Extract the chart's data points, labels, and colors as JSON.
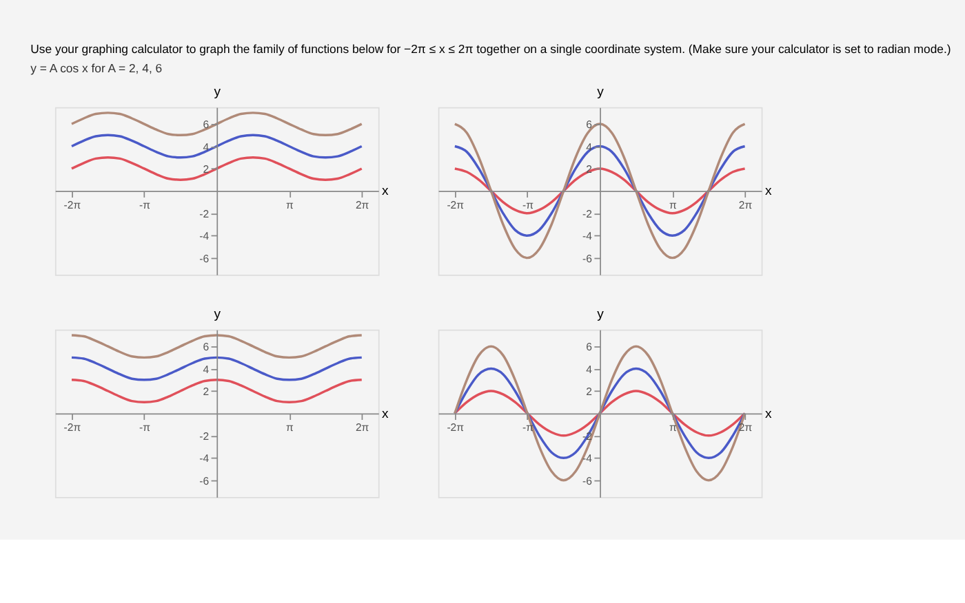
{
  "chart_data": [
    {
      "type": "line",
      "title": "Use your graphing calculator to graph the family of functions below for −2π ≤ x ≤ 2π together on a single coordinate system. (Make sure your calculator is set to radian mode.)",
      "subtitle": "y = A cos x   for   A = 2, 4, 6",
      "xlabel": "x",
      "ylabel": "y",
      "x": [
        -6.28,
        -5.76,
        -5.24,
        -4.71,
        -4.19,
        -3.67,
        -3.14,
        -2.62,
        -2.09,
        -1.57,
        -1.05,
        -0.52,
        0,
        0.52,
        1.05,
        1.57,
        2.09,
        2.62,
        3.14,
        3.67,
        4.19,
        4.71,
        5.24,
        5.76,
        6.28
      ],
      "xlim": [
        -7,
        7
      ],
      "ylim": [
        -7.5,
        7.5
      ],
      "xticks": [
        {
          "value": -6.28,
          "label": "-2π"
        },
        {
          "value": -3.14,
          "label": "-π"
        },
        {
          "value": 3.14,
          "label": "π"
        },
        {
          "value": 6.28,
          "label": "2π"
        }
      ],
      "yticks": [
        -6,
        -4,
        -2,
        2,
        4,
        6
      ],
      "series": [
        {
          "color": "#e0505a",
          "values": [
            2,
            2.5,
            2.9,
            3,
            2.9,
            2.5,
            2,
            1.5,
            1.1,
            1,
            1.1,
            1.5,
            2,
            2.5,
            2.9,
            3,
            2.9,
            2.5,
            2,
            1.5,
            1.1,
            1,
            1.1,
            1.5,
            2
          ]
        },
        {
          "color": "#4a5ac8",
          "values": [
            4,
            4.5,
            4.9,
            5,
            4.9,
            4.5,
            4,
            3.5,
            3.1,
            3,
            3.1,
            3.5,
            4,
            4.5,
            4.9,
            5,
            4.9,
            4.5,
            4,
            3.5,
            3.1,
            3,
            3.1,
            3.5,
            4
          ]
        },
        {
          "color": "#b08a78",
          "values": [
            6,
            6.5,
            6.9,
            7,
            6.9,
            6.5,
            6,
            5.5,
            5.1,
            5,
            5.1,
            5.5,
            6,
            6.5,
            6.9,
            7,
            6.9,
            6.5,
            6,
            5.5,
            5.1,
            5,
            5.1,
            5.5,
            6
          ]
        }
      ]
    },
    {
      "type": "line",
      "xlabel": "x",
      "ylabel": "y",
      "x": [
        -6.28,
        -5.76,
        -5.24,
        -4.71,
        -4.19,
        -3.67,
        -3.14,
        -2.62,
        -2.09,
        -1.57,
        -1.05,
        -0.52,
        0,
        0.52,
        1.05,
        1.57,
        2.09,
        2.62,
        3.14,
        3.67,
        4.19,
        4.71,
        5.24,
        5.76,
        6.28
      ],
      "xlim": [
        -7,
        7
      ],
      "ylim": [
        -7.5,
        7.5
      ],
      "xticks": [
        {
          "value": -6.28,
          "label": "-2π"
        },
        {
          "value": -3.14,
          "label": "-π"
        },
        {
          "value": 3.14,
          "label": "π"
        },
        {
          "value": 6.28,
          "label": "2π"
        }
      ],
      "yticks": [
        -6,
        -4,
        -2,
        2,
        4,
        6
      ],
      "series": [
        {
          "color": "#e0505a",
          "values": [
            2,
            1.7,
            1,
            0,
            -1,
            -1.7,
            -2,
            -1.7,
            -1,
            0,
            1,
            1.7,
            2,
            1.7,
            1,
            0,
            -1,
            -1.7,
            -2,
            -1.7,
            -1,
            0,
            1,
            1.7,
            2
          ]
        },
        {
          "color": "#4a5ac8",
          "values": [
            4,
            3.5,
            2,
            0,
            -2,
            -3.5,
            -4,
            -3.5,
            -2,
            0,
            2,
            3.5,
            4,
            3.5,
            2,
            0,
            -2,
            -3.5,
            -4,
            -3.5,
            -2,
            0,
            2,
            3.5,
            4
          ]
        },
        {
          "color": "#b08a78",
          "values": [
            6,
            5.2,
            3,
            0,
            -3,
            -5.2,
            -6,
            -5.2,
            -3,
            0,
            3,
            5.2,
            6,
            5.2,
            3,
            0,
            -3,
            -5.2,
            -6,
            -5.2,
            -3,
            0,
            3,
            5.2,
            6
          ]
        }
      ]
    },
    {
      "type": "line",
      "xlabel": "x",
      "ylabel": "y",
      "x": [
        -6.28,
        -5.76,
        -5.24,
        -4.71,
        -4.19,
        -3.67,
        -3.14,
        -2.62,
        -2.09,
        -1.57,
        -1.05,
        -0.52,
        0,
        0.52,
        1.05,
        1.57,
        2.09,
        2.62,
        3.14,
        3.67,
        4.19,
        4.71,
        5.24,
        5.76,
        6.28
      ],
      "xlim": [
        -7,
        7
      ],
      "ylim": [
        -7.5,
        7.5
      ],
      "xticks": [
        {
          "value": -6.28,
          "label": "-2π"
        },
        {
          "value": -3.14,
          "label": "-π"
        },
        {
          "value": 3.14,
          "label": "π"
        },
        {
          "value": 6.28,
          "label": "2π"
        }
      ],
      "yticks": [
        -6,
        -4,
        -2,
        2,
        4,
        6
      ],
      "series": [
        {
          "color": "#e0505a",
          "values": [
            3,
            2.9,
            2.5,
            2,
            1.5,
            1.1,
            1,
            1.1,
            1.5,
            2,
            2.5,
            2.9,
            3,
            2.9,
            2.5,
            2,
            1.5,
            1.1,
            1,
            1.1,
            1.5,
            2,
            2.5,
            2.9,
            3
          ]
        },
        {
          "color": "#4a5ac8",
          "values": [
            5,
            4.9,
            4.5,
            4,
            3.5,
            3.1,
            3,
            3.1,
            3.5,
            4,
            4.5,
            4.9,
            5,
            4.9,
            4.5,
            4,
            3.5,
            3.1,
            3,
            3.1,
            3.5,
            4,
            4.5,
            4.9,
            5
          ]
        },
        {
          "color": "#b08a78",
          "values": [
            7,
            6.9,
            6.5,
            6,
            5.5,
            5.1,
            5,
            5.1,
            5.5,
            6,
            6.5,
            6.9,
            7,
            6.9,
            6.5,
            6,
            5.5,
            5.1,
            5,
            5.1,
            5.5,
            6,
            6.5,
            6.9,
            7
          ]
        }
      ]
    },
    {
      "type": "line",
      "xlabel": "x",
      "ylabel": "y",
      "x": [
        -6.28,
        -5.76,
        -5.24,
        -4.71,
        -4.19,
        -3.67,
        -3.14,
        -2.62,
        -2.09,
        -1.57,
        -1.05,
        -0.52,
        0,
        0.52,
        1.05,
        1.57,
        2.09,
        2.62,
        3.14,
        3.67,
        4.19,
        4.71,
        5.24,
        5.76,
        6.28
      ],
      "xlim": [
        -7,
        7
      ],
      "ylim": [
        -7.5,
        7.5
      ],
      "xticks": [
        {
          "value": -6.28,
          "label": "-2π"
        },
        {
          "value": -3.14,
          "label": "-π"
        },
        {
          "value": 3.14,
          "label": "π"
        },
        {
          "value": 6.28,
          "label": "2π"
        }
      ],
      "yticks": [
        -6,
        -4,
        -2,
        2,
        4,
        6
      ],
      "series": [
        {
          "color": "#e0505a",
          "values": [
            0,
            1,
            1.7,
            2,
            1.7,
            1,
            0,
            -1,
            -1.7,
            -2,
            -1.7,
            -1,
            0,
            1,
            1.7,
            2,
            1.7,
            1,
            0,
            -1,
            -1.7,
            -2,
            -1.7,
            -1,
            0
          ]
        },
        {
          "color": "#4a5ac8",
          "values": [
            0,
            2,
            3.5,
            4,
            3.5,
            2,
            0,
            -2,
            -3.5,
            -4,
            -3.5,
            -2,
            0,
            2,
            3.5,
            4,
            3.5,
            2,
            0,
            -2,
            -3.5,
            -4,
            -3.5,
            -2,
            0
          ]
        },
        {
          "color": "#b08a78",
          "values": [
            0,
            3,
            5.2,
            6,
            5.2,
            3,
            0,
            -3,
            -5.2,
            -6,
            -5.2,
            -3,
            0,
            3,
            5.2,
            6,
            5.2,
            3,
            0,
            -3,
            -5.2,
            -6,
            -5.2,
            -3,
            0
          ]
        }
      ]
    }
  ]
}
